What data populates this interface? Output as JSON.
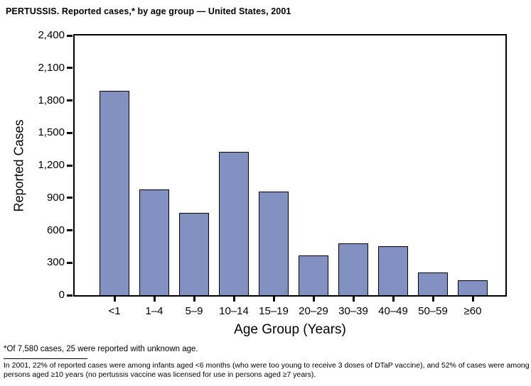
{
  "chart_data": {
    "type": "bar",
    "title": "PERTUSSIS. Reported cases,* by age group — United States, 2001",
    "categories": [
      "<1",
      "1–4",
      "5–9",
      "10–14",
      "15–19",
      "20–29",
      "30–39",
      "40–49",
      "50–59",
      "≥60"
    ],
    "values": [
      1890,
      975,
      760,
      1325,
      960,
      370,
      480,
      455,
      210,
      140
    ],
    "xlabel": "Age Group (Years)",
    "ylabel": "Reported Cases",
    "ylim": [
      0,
      2400
    ],
    "ytick_step": 300,
    "ytick_labels": [
      "0",
      "300",
      "600",
      "900",
      "1,200",
      "1,500",
      "1,800",
      "2,100",
      "2,400"
    ],
    "bar_color": "#8290c2",
    "bar_border_color": "#000000",
    "axis_color": "#000000",
    "grid": false,
    "legend": null
  },
  "footnotes": {
    "note1": "*Of 7,580 cases, 25 were reported with unknown age.",
    "note2": "In 2001, 22% of reported cases were among infants aged <6 months (who were too young to receive 3 doses of DTaP vaccine), and 52% of cases were among persons aged ≥10 years (no pertussis vaccine was licensed for use in persons aged ≥7 years)."
  }
}
